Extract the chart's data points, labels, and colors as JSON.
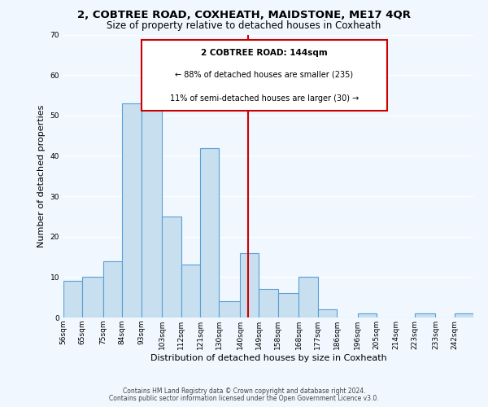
{
  "title": "2, COBTREE ROAD, COXHEATH, MAIDSTONE, ME17 4QR",
  "subtitle": "Size of property relative to detached houses in Coxheath",
  "xlabel": "Distribution of detached houses by size in Coxheath",
  "ylabel": "Number of detached properties",
  "bar_heights": [
    9,
    10,
    14,
    53,
    55,
    25,
    13,
    42,
    4,
    16,
    7,
    6,
    10,
    2,
    0,
    1,
    0,
    0,
    1,
    0,
    1
  ],
  "bin_edges": [
    56,
    65,
    75,
    84,
    93,
    103,
    112,
    121,
    130,
    140,
    149,
    158,
    168,
    177,
    186,
    196,
    205,
    214,
    223,
    233,
    242,
    251
  ],
  "x_tick_labels": [
    "56sqm",
    "65sqm",
    "75sqm",
    "84sqm",
    "93sqm",
    "103sqm",
    "112sqm",
    "121sqm",
    "130sqm",
    "140sqm",
    "149sqm",
    "158sqm",
    "168sqm",
    "177sqm",
    "186sqm",
    "196sqm",
    "205sqm",
    "214sqm",
    "223sqm",
    "233sqm",
    "242sqm"
  ],
  "bar_color": "#c8dff0",
  "bar_edge_color": "#5a9fd4",
  "vline_x": 144,
  "vline_color": "#cc0000",
  "ylim": [
    0,
    70
  ],
  "yticks": [
    0,
    10,
    20,
    30,
    40,
    50,
    60,
    70
  ],
  "annotation_title": "2 COBTREE ROAD: 144sqm",
  "annotation_line1": "← 88% of detached houses are smaller (235)",
  "annotation_line2": "11% of semi-detached houses are larger (30) →",
  "annotation_box_color": "#ffffff",
  "annotation_box_edge": "#cc0000",
  "footer_line1": "Contains HM Land Registry data © Crown copyright and database right 2024.",
  "footer_line2": "Contains public sector information licensed under the Open Government Licence v3.0.",
  "background_color": "#f0f7ff",
  "grid_color": "#ffffff",
  "title_fontsize": 9.5,
  "subtitle_fontsize": 8.5,
  "axis_label_fontsize": 8,
  "tick_fontsize": 6.5,
  "footer_fontsize": 5.5,
  "annot_title_fontsize": 7.5,
  "annot_text_fontsize": 7.0
}
